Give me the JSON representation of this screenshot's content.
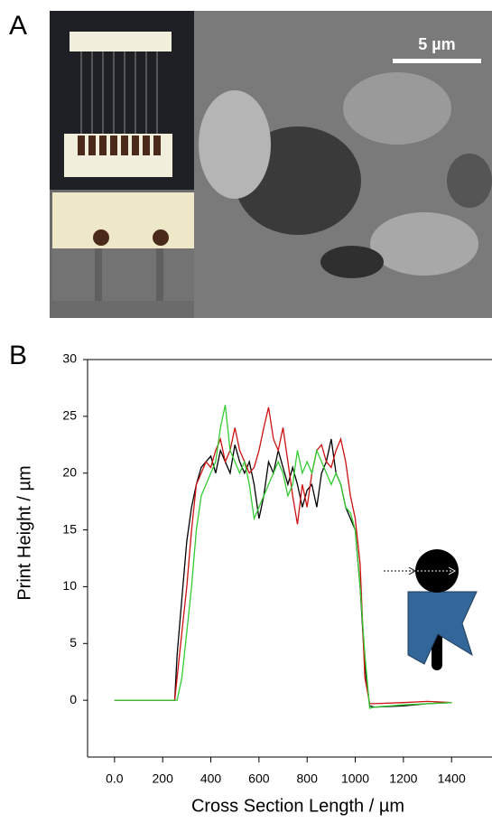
{
  "panel_a": {
    "label": "A",
    "scale_bar": "5 µm"
  },
  "chart_data": {
    "type": "line",
    "panel_label": "B",
    "x_label": "Cross Section Length / µm",
    "y_label": "Print Height / µm",
    "x": [
      0,
      100,
      200,
      250,
      260,
      280,
      300,
      320,
      340,
      360,
      380,
      400,
      420,
      440,
      460,
      480,
      500,
      520,
      540,
      560,
      580,
      600,
      620,
      640,
      660,
      680,
      700,
      720,
      740,
      760,
      780,
      800,
      820,
      840,
      860,
      880,
      900,
      920,
      940,
      960,
      980,
      1000,
      1020,
      1040,
      1060,
      1080,
      1200,
      1300,
      1400
    ],
    "series": [
      {
        "color": "#000000",
        "values": [
          0,
          0,
          0,
          0,
          4,
          9,
          14,
          17,
          19,
          20.5,
          21,
          21.5,
          20,
          22,
          21,
          20,
          22.5,
          21,
          20,
          21,
          19,
          16,
          18,
          21,
          20,
          22,
          20.5,
          19,
          20.5,
          19,
          17,
          18.5,
          19,
          17,
          20,
          21,
          23,
          20,
          19,
          17,
          16,
          15,
          10,
          3,
          -0.5,
          -0.6,
          -0.5,
          -0.3,
          -0.2
        ]
      },
      {
        "color": "#cc1111",
        "values": [
          0,
          0,
          0,
          0,
          2,
          6,
          10,
          15,
          19,
          20,
          21,
          20.5,
          22,
          23,
          21,
          22,
          24,
          22,
          21,
          20,
          20.5,
          22,
          24,
          25.8,
          23,
          22,
          24,
          21,
          18,
          15.5,
          19,
          17,
          20,
          22,
          22.5,
          21,
          20.5,
          22,
          23,
          21,
          18,
          16,
          12,
          2,
          -0.3,
          -0.3,
          -0.2,
          -0.1,
          -0.2
        ]
      },
      {
        "color": "#33cc33",
        "values": [
          0,
          0,
          0,
          0,
          0,
          2,
          6,
          10,
          15,
          18,
          19,
          20,
          21,
          24,
          26,
          22,
          21,
          20,
          21,
          19,
          16,
          17,
          18,
          19,
          20,
          21,
          20,
          18,
          19,
          22,
          20,
          21,
          20,
          22,
          21,
          20,
          19,
          20,
          19,
          17,
          16.5,
          15,
          10,
          4,
          -0.7,
          -0.6,
          -0.4,
          -0.3,
          -0.2
        ]
      }
    ],
    "xlim": [
      -112,
      1568
    ],
    "ylim": [
      -5,
      30
    ],
    "xticks": [
      {
        "value": 0,
        "label": "0.0"
      },
      200,
      400,
      600,
      800,
      1000,
      1200,
      1400
    ],
    "yticks": [
      0,
      5,
      10,
      15,
      20,
      25,
      30
    ]
  }
}
